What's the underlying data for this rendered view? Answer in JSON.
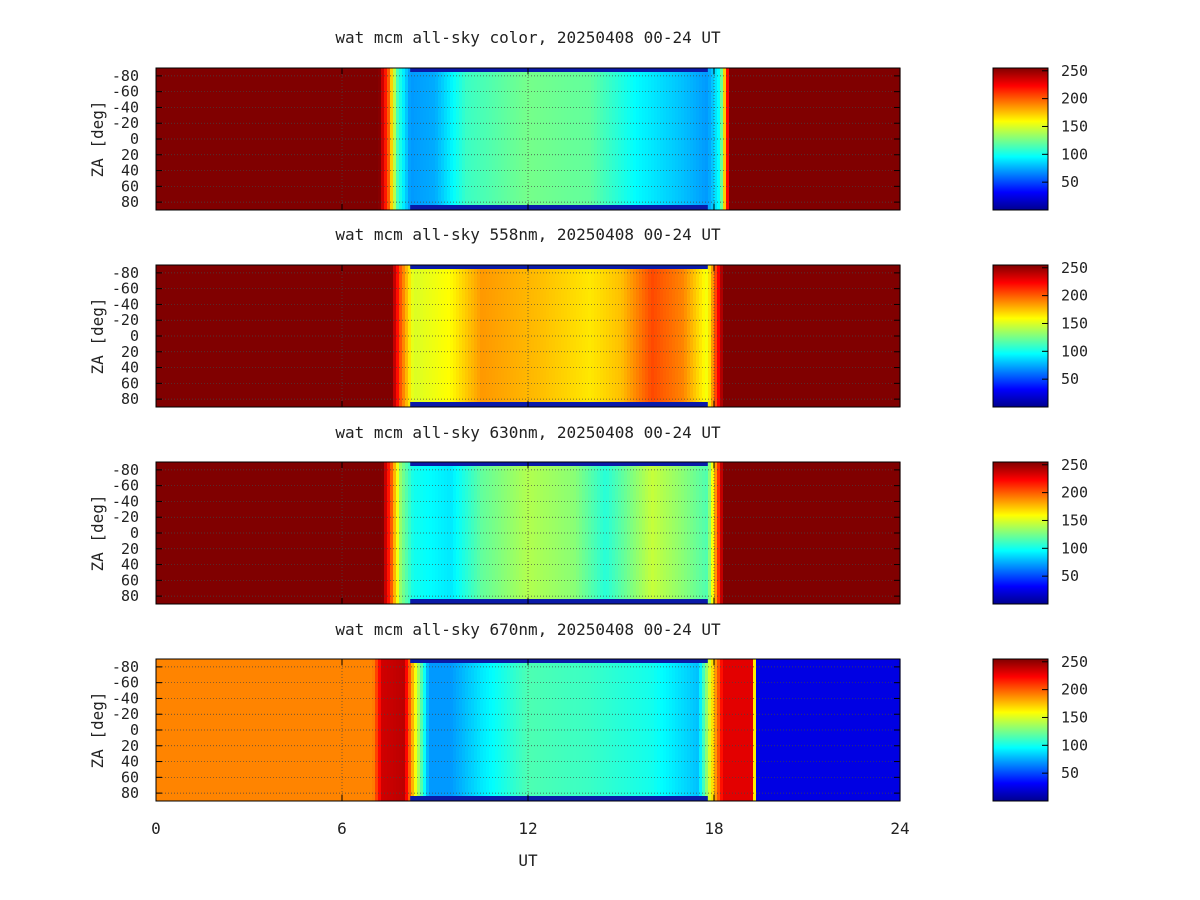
{
  "figure": {
    "xlabel": "UT",
    "ylabel": "ZA [deg]",
    "x_ticks": [
      "0",
      "6",
      "12",
      "18",
      "24"
    ],
    "y_ticks": [
      "-80",
      "-60",
      "-40",
      "-20",
      "0",
      "20",
      "40",
      "60",
      "80"
    ],
    "colorbar_ticks": [
      "250",
      "200",
      "150",
      "100",
      "50"
    ]
  },
  "chart_data": [
    {
      "type": "heatmap",
      "title": "wat mcm all-sky color, 20250408 00-24 UT",
      "xlabel": "",
      "ylabel": "ZA [deg]",
      "xlim": [
        0,
        24
      ],
      "ylim": [
        -90,
        90
      ],
      "y_ticks": [
        -80,
        -60,
        -40,
        -20,
        0,
        20,
        40,
        60,
        80
      ],
      "colorbar": {
        "min": 0,
        "max": 255,
        "colormap": "jet",
        "ticks": [
          250,
          200,
          150,
          100,
          50
        ]
      },
      "grid": true,
      "profile_ut": [
        0,
        7.2,
        7.5,
        7.8,
        8.2,
        9.0,
        10.0,
        12.0,
        14.0,
        15.5,
        17.0,
        17.8,
        18.2,
        18.5,
        24
      ],
      "profile_value": [
        255,
        255,
        200,
        110,
        70,
        75,
        110,
        125,
        120,
        95,
        80,
        70,
        100,
        255,
        255
      ]
    },
    {
      "type": "heatmap",
      "title": "wat mcm all-sky 558nm, 20250408 00-24 UT",
      "xlabel": "",
      "ylabel": "ZA [deg]",
      "xlim": [
        0,
        24
      ],
      "ylim": [
        -90,
        90
      ],
      "y_ticks": [
        -80,
        -60,
        -40,
        -20,
        0,
        20,
        40,
        60,
        80
      ],
      "colorbar": {
        "min": 0,
        "max": 255,
        "colormap": "jet",
        "ticks": [
          250,
          200,
          150,
          100,
          50
        ]
      },
      "grid": true,
      "profile_ut": [
        0,
        7.6,
        7.9,
        8.3,
        9.5,
        10.5,
        11.5,
        12.5,
        14.0,
        15.0,
        16.0,
        17.0,
        17.8,
        18.3,
        24
      ],
      "profile_value": [
        255,
        255,
        200,
        150,
        160,
        185,
        180,
        175,
        165,
        175,
        205,
        190,
        155,
        255,
        255
      ]
    },
    {
      "type": "heatmap",
      "title": "wat mcm all-sky 630nm, 20250408 00-24 UT",
      "xlabel": "",
      "ylabel": "ZA [deg]",
      "xlim": [
        0,
        24
      ],
      "ylim": [
        -90,
        90
      ],
      "y_ticks": [
        -80,
        -60,
        -40,
        -20,
        0,
        20,
        40,
        60,
        80
      ],
      "colorbar": {
        "min": 0,
        "max": 255,
        "colormap": "jet",
        "ticks": [
          250,
          200,
          150,
          100,
          50
        ]
      },
      "grid": true,
      "profile_ut": [
        0,
        7.3,
        7.6,
        7.9,
        8.3,
        9.5,
        10.5,
        12.0,
        13.5,
        14.5,
        16.0,
        17.0,
        17.8,
        18.3,
        24
      ],
      "profile_value": [
        255,
        255,
        200,
        130,
        100,
        90,
        120,
        140,
        130,
        105,
        145,
        130,
        115,
        255,
        255
      ]
    },
    {
      "type": "heatmap",
      "title": "wat mcm all-sky 670nm, 20250408 00-24 UT",
      "xlabel": "UT",
      "ylabel": "ZA [deg]",
      "xlim": [
        0,
        24
      ],
      "ylim": [
        -90,
        90
      ],
      "y_ticks": [
        -80,
        -60,
        -40,
        -20,
        0,
        20,
        40,
        60,
        80
      ],
      "colorbar": {
        "min": 0,
        "max": 255,
        "colormap": "jet",
        "ticks": [
          250,
          200,
          150,
          100,
          50
        ]
      },
      "grid": true,
      "profile_ut": [
        0,
        7.0,
        7.3,
        8.0,
        8.4,
        8.8,
        9.5,
        10.5,
        12.0,
        14.0,
        16.0,
        17.5,
        17.8,
        18.3,
        19.3,
        19.32,
        24
      ],
      "profile_value": [
        190,
        190,
        235,
        240,
        150,
        70,
        70,
        90,
        115,
        110,
        100,
        80,
        140,
        230,
        230,
        25,
        25
      ]
    }
  ],
  "colors": {
    "axis": "#000000",
    "grid": "#444444",
    "text": "#222222"
  }
}
